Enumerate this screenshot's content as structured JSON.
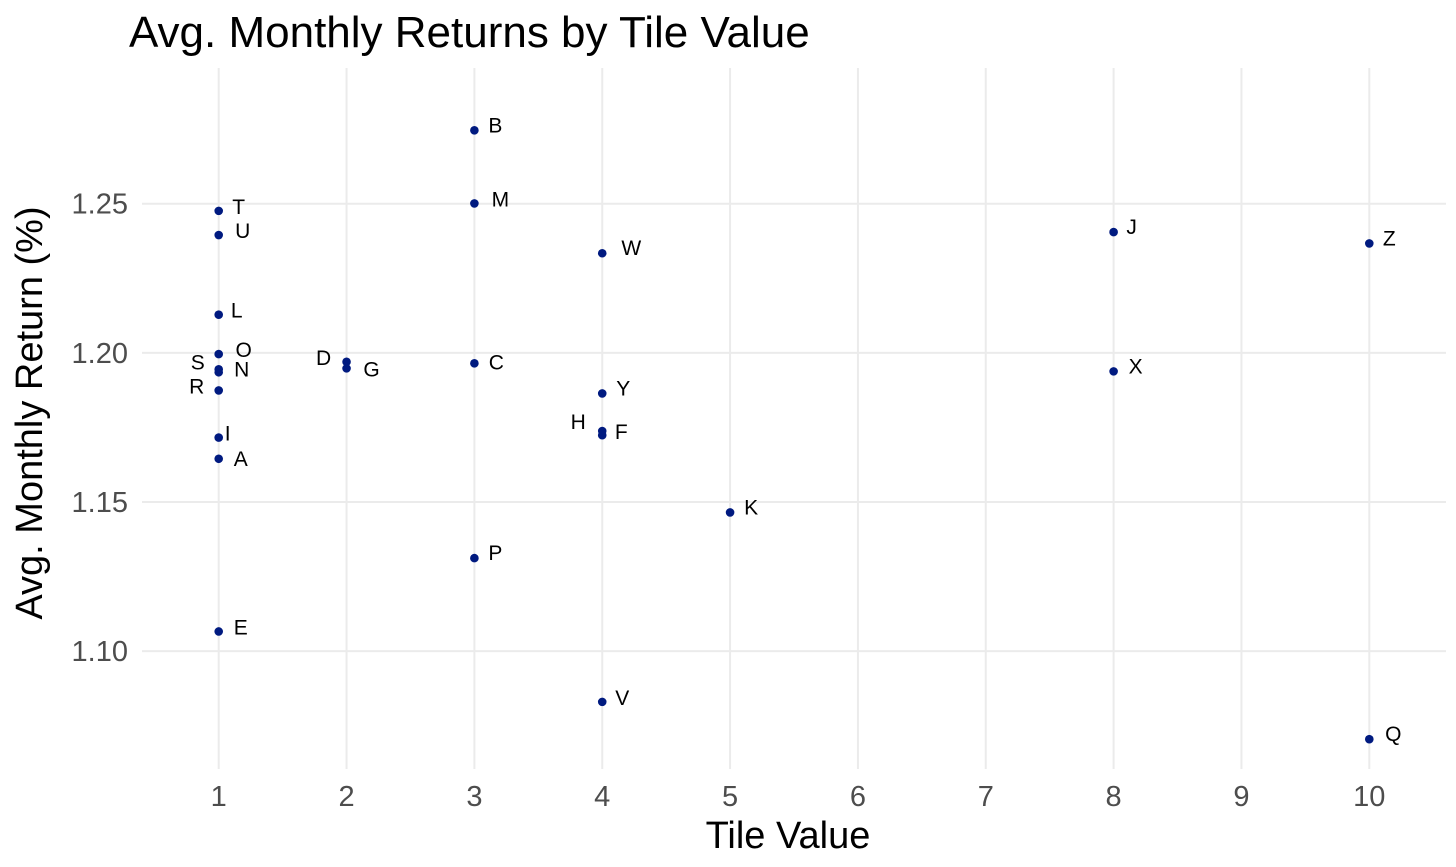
{
  "chart_data": {
    "type": "scatter",
    "title": "Avg. Monthly Returns by Tile Value",
    "xlabel": "Tile Value",
    "ylabel": "Avg. Monthly Return (%)",
    "xlim": [
      0.4,
      10.6
    ],
    "ylim": [
      1.0605,
      1.2955
    ],
    "x_ticks": [
      1,
      2,
      3,
      4,
      5,
      6,
      7,
      8,
      9,
      10
    ],
    "y_ticks": [
      1.1,
      1.15,
      1.2,
      1.25
    ],
    "y_tick_labels": [
      "1.10",
      "1.15",
      "1.20",
      "1.25"
    ],
    "grid": true,
    "point_color": "#001a80",
    "points": [
      {
        "label": "A",
        "x": 1,
        "y": 1.1645
      },
      {
        "label": "E",
        "x": 1,
        "y": 1.1066
      },
      {
        "label": "I",
        "x": 1,
        "y": 1.1716
      },
      {
        "label": "L",
        "x": 1,
        "y": 1.2128
      },
      {
        "label": "N",
        "x": 1,
        "y": 1.1935
      },
      {
        "label": "O",
        "x": 1,
        "y": 1.1996
      },
      {
        "label": "R",
        "x": 1,
        "y": 1.1874
      },
      {
        "label": "S",
        "x": 1,
        "y": 1.1945
      },
      {
        "label": "T",
        "x": 1,
        "y": 1.2476
      },
      {
        "label": "U",
        "x": 1,
        "y": 1.2395
      },
      {
        "label": "D",
        "x": 2,
        "y": 1.197
      },
      {
        "label": "G",
        "x": 2,
        "y": 1.1948
      },
      {
        "label": "B",
        "x": 3,
        "y": 1.2746
      },
      {
        "label": "C",
        "x": 3,
        "y": 1.1965
      },
      {
        "label": "M",
        "x": 3,
        "y": 1.2501
      },
      {
        "label": "P",
        "x": 3,
        "y": 1.1312
      },
      {
        "label": "F",
        "x": 4,
        "y": 1.1724
      },
      {
        "label": "H",
        "x": 4,
        "y": 1.1738
      },
      {
        "label": "V",
        "x": 4,
        "y": 1.083
      },
      {
        "label": "W",
        "x": 4,
        "y": 1.2334
      },
      {
        "label": "Y",
        "x": 4,
        "y": 1.1864
      },
      {
        "label": "K",
        "x": 5,
        "y": 1.1465
      },
      {
        "label": "J",
        "x": 8,
        "y": 1.2405
      },
      {
        "label": "X",
        "x": 8,
        "y": 1.1938
      },
      {
        "label": "Q",
        "x": 10,
        "y": 1.0705
      },
      {
        "label": "Z",
        "x": 10,
        "y": 1.2367
      }
    ]
  }
}
